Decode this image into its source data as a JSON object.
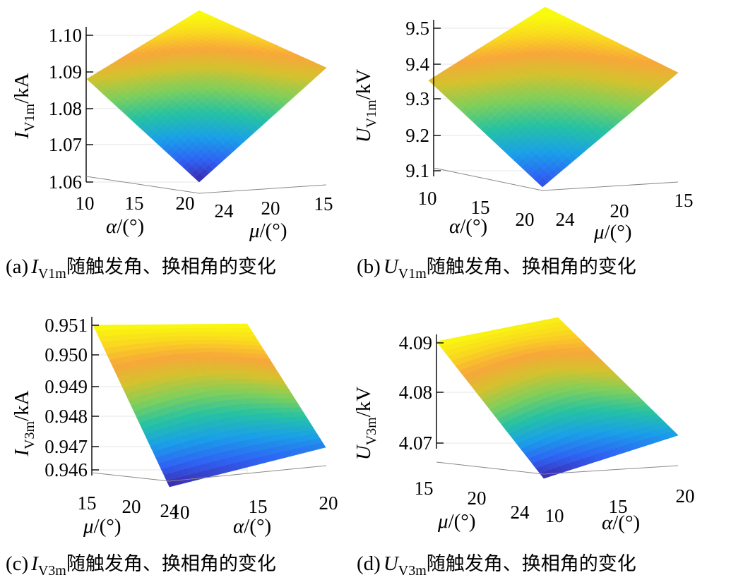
{
  "chart_data": [
    {
      "id": "a",
      "type": "surface",
      "caption": {
        "prefix": "(a)",
        "var_main": "I",
        "var_sub": "V1m",
        "suffix": "随触发角、换相角的变化"
      },
      "zlabel": {
        "main": "I",
        "sub": "V1m",
        "unit": "/kA"
      },
      "zticks": [
        "1.06",
        "1.07",
        "1.08",
        "1.09",
        "1.10"
      ],
      "zlim": [
        1.06,
        1.105
      ],
      "axis_front": {
        "label": {
          "main": "α",
          "unit": "/(°)"
        },
        "ticks": [
          "10",
          "15",
          "20"
        ]
      },
      "axis_side": {
        "label": {
          "main": "μ",
          "unit": "/(°)"
        },
        "ticks": [
          "24",
          "20",
          "15"
        ]
      },
      "corner_values": {
        "back": 1.106,
        "left": 1.088,
        "right": 1.091,
        "front": 1.06
      }
    },
    {
      "id": "b",
      "type": "surface",
      "caption": {
        "prefix": "(b)",
        "var_main": "U",
        "var_sub": "V1m",
        "suffix": "随触发角、换相角的变化"
      },
      "zlabel": {
        "main": "U",
        "sub": "V1m",
        "unit": "/kV"
      },
      "zticks": [
        "9.1",
        "9.2",
        "9.3",
        "9.4",
        "9.5"
      ],
      "zlim": [
        9.1,
        9.5
      ],
      "axis_front": {
        "label": {
          "main": "α",
          "unit": "/(°)"
        },
        "ticks": [
          "10",
          "15",
          "20"
        ]
      },
      "axis_side": {
        "label": {
          "main": "μ",
          "unit": "/(°)"
        },
        "ticks": [
          "24",
          "20",
          "15"
        ]
      },
      "corner_values": {
        "back": 9.52,
        "left": 9.36,
        "right": 9.38,
        "front": 9.13
      }
    },
    {
      "id": "c",
      "type": "surface",
      "caption": {
        "prefix": "(c)",
        "var_main": "I",
        "var_sub": "V3m",
        "suffix": "随触发角、换相角的变化"
      },
      "zlabel": {
        "main": "I",
        "sub": "V3m",
        "unit": "/kA"
      },
      "zticks": [
        "0.946",
        "0.947",
        "0.948",
        "0.949",
        "0.950",
        "0.951"
      ],
      "zlim": [
        0.946,
        0.951
      ],
      "axis_front": {
        "label": {
          "main": "μ",
          "unit": "/(°)"
        },
        "ticks": [
          "15",
          "20",
          "24"
        ]
      },
      "axis_side": {
        "label": {
          "main": "α",
          "unit": "/(°)"
        },
        "ticks": [
          "10",
          "15",
          "20"
        ]
      },
      "corner_values": {
        "back": 0.951,
        "left": 0.951,
        "right": 0.9469,
        "front": 0.946
      }
    },
    {
      "id": "d",
      "type": "surface",
      "caption": {
        "prefix": "(d)",
        "var_main": "U",
        "var_sub": "V3m",
        "suffix": "随触发角、换相角的变化"
      },
      "zlabel": {
        "main": "U",
        "sub": "V3m",
        "unit": "/kV"
      },
      "zticks": [
        "4.07",
        "4.08",
        "4.09"
      ],
      "zlim": [
        4.065,
        4.09
      ],
      "axis_front": {
        "label": {
          "main": "μ",
          "unit": "/(°)"
        },
        "ticks": [
          "15",
          "20",
          "24"
        ]
      },
      "axis_side": {
        "label": {
          "main": "α",
          "unit": "/(°)"
        },
        "ticks": [
          "10",
          "15",
          "20"
        ]
      },
      "corner_values": {
        "back": 4.089,
        "left": 4.09,
        "right": 4.071,
        "front": 4.065
      }
    }
  ],
  "colormap": [
    "#3e26a8",
    "#2f63f4",
    "#1aa0e8",
    "#26c2a3",
    "#7fcf5c",
    "#d4c22e",
    "#f8a73a",
    "#f9d91f",
    "#f9fb0e"
  ]
}
